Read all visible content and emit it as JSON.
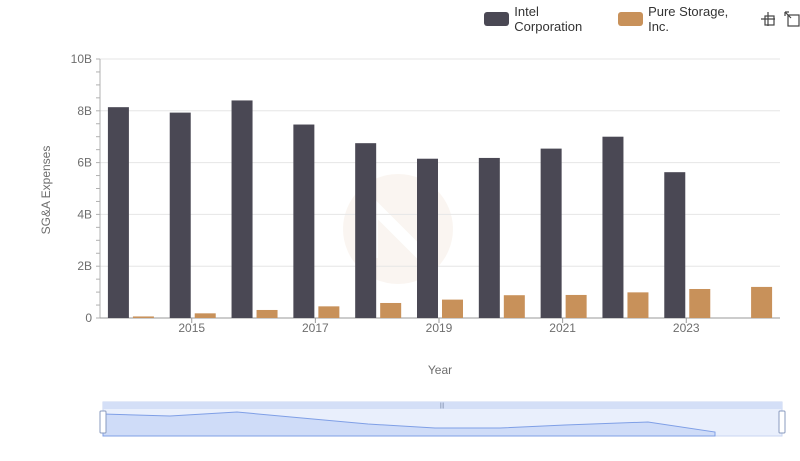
{
  "legend": {
    "items": [
      {
        "name": "Intel Corporation",
        "color": "#4a4854"
      },
      {
        "name": "Pure Storage, Inc.",
        "color": "#c8915a"
      }
    ],
    "tools": [
      {
        "icon": "zoom-select-icon"
      },
      {
        "icon": "zoom-reset-icon"
      }
    ]
  },
  "chart_data": {
    "type": "bar",
    "xlabel": "Year",
    "ylabel": "SG&A Expenses",
    "ylim": [
      0,
      10000000000
    ],
    "yticks": [
      {
        "value": 0,
        "label": "0"
      },
      {
        "value": 2000000000,
        "label": "2B"
      },
      {
        "value": 4000000000,
        "label": "4B"
      },
      {
        "value": 6000000000,
        "label": "6B"
      },
      {
        "value": 8000000000,
        "label": "8B"
      },
      {
        "value": 10000000000,
        "label": "10B"
      }
    ],
    "categories": [
      "2014",
      "2015",
      "2016",
      "2017",
      "2018",
      "2019",
      "2020",
      "2021",
      "2022",
      "2023",
      "2024"
    ],
    "xtick_labels": [
      "2015",
      "2017",
      "2019",
      "2021",
      "2023"
    ],
    "grid": true,
    "legend_position": "top-right",
    "series": [
      {
        "name": "Intel Corporation",
        "color": "#4a4854",
        "values": [
          8140000000,
          7930000000,
          8400000000,
          7470000000,
          6750000000,
          6150000000,
          6180000000,
          6540000000,
          7000000000,
          5630000000,
          null
        ]
      },
      {
        "name": "Pure Storage, Inc.",
        "color": "#c8915a",
        "values": [
          60000000,
          180000000,
          310000000,
          450000000,
          580000000,
          710000000,
          880000000,
          890000000,
          990000000,
          1120000000,
          1200000000
        ]
      }
    ]
  }
}
